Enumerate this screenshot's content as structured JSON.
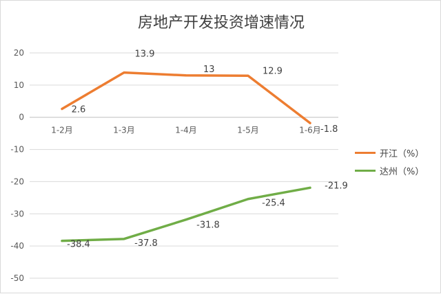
{
  "chart_data": {
    "type": "line",
    "title": "房地产开发投资增速情况",
    "categories": [
      "1-2月",
      "1-3月",
      "1-4月",
      "1-5月",
      "1-6月"
    ],
    "ylim": [
      -50,
      20
    ],
    "yticks": [
      20,
      10,
      0,
      -10,
      -20,
      -30,
      -40,
      -50
    ],
    "ytick_labels": [
      "20",
      "10",
      "0",
      "-10",
      "-20",
      "-30",
      "-40",
      "-50"
    ],
    "grid": true,
    "legend_position": "right",
    "series": [
      {
        "name": "开江（%）",
        "color": "#ed7d31",
        "values": [
          2.6,
          13.9,
          13,
          12.9,
          -1.8
        ],
        "labels": [
          "2.6",
          "13.9",
          "13",
          "12.9",
          "-1.8"
        ]
      },
      {
        "name": "达州（%）",
        "color": "#70ad47",
        "values": [
          -38.4,
          -37.8,
          -31.8,
          -25.4,
          -21.9
        ],
        "labels": [
          "-38.4",
          "-37.8",
          "-31.8",
          "-25.4",
          "-21.9"
        ]
      }
    ]
  }
}
